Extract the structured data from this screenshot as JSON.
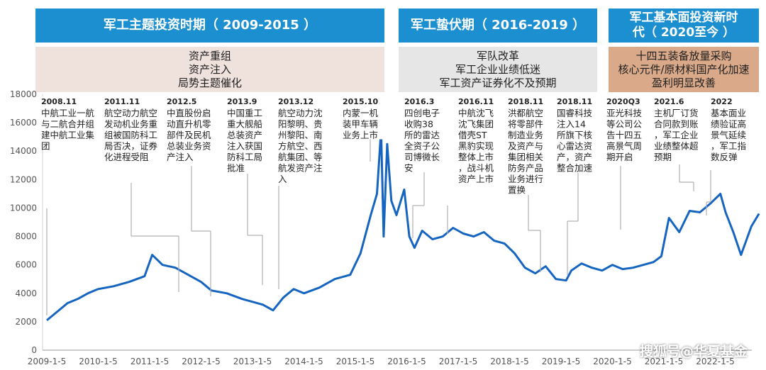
{
  "periods": [
    {
      "title": "军工主题投资时期（ 2009-2015 ）",
      "lines": [
        "资产重组",
        "资产注入",
        "局势主题催化"
      ]
    },
    {
      "title": "军工蛰伏期（ 2016-2019 ）",
      "lines": [
        "军队改革",
        "军工企业业绩低迷",
        "军工资产证券化不及预期"
      ]
    },
    {
      "title": "军工基本面投资新时代（ 2020至今 ）",
      "lines": [
        "十四五装备放量采购",
        "核心元件/原材料国产化加速",
        "盈利明显改善"
      ]
    }
  ],
  "colors": {
    "header": "#1b8fcf",
    "desc1": "#efe2dd",
    "desc2": "#e6e6e6",
    "desc3": "#d9a98a",
    "line": "#1565c0",
    "connector": "#b0b0b0"
  },
  "watermark": "搜狐号@华夏基金",
  "chart_data": {
    "type": "line",
    "title": "",
    "xlabel": "",
    "ylabel": "",
    "ylim": [
      0,
      18000
    ],
    "yticks": [
      0,
      2000,
      4000,
      6000,
      8000,
      10000,
      12000,
      14000,
      16000,
      18000
    ],
    "xticks": [
      "2009-1-5",
      "2010-1-5",
      "2011-1-5",
      "2012-1-5",
      "2013-1-5",
      "2014-1-5",
      "2015-1-5",
      "2016-1-5",
      "2017-1-5",
      "2018-1-5",
      "2019-1-5",
      "2020-1-5",
      "2021-1-5",
      "2022-1-5"
    ],
    "grid": false,
    "series": [
      {
        "name": "",
        "x": [
          2009.0,
          2009.2,
          2009.4,
          2009.6,
          2009.8,
          2010.0,
          2010.3,
          2010.6,
          2010.9,
          2011.05,
          2011.25,
          2011.5,
          2011.75,
          2012.0,
          2012.2,
          2012.5,
          2012.8,
          2013.0,
          2013.2,
          2013.4,
          2013.6,
          2013.8,
          2014.0,
          2014.3,
          2014.6,
          2014.9,
          2015.1,
          2015.3,
          2015.42,
          2015.5,
          2015.55,
          2015.62,
          2015.7,
          2015.8,
          2015.95,
          2016.05,
          2016.15,
          2016.3,
          2016.5,
          2016.7,
          2016.9,
          2017.1,
          2017.3,
          2017.5,
          2017.7,
          2017.9,
          2018.1,
          2018.3,
          2018.5,
          2018.7,
          2018.9,
          2019.1,
          2019.2,
          2019.4,
          2019.6,
          2019.8,
          2020.0,
          2020.2,
          2020.4,
          2020.6,
          2020.8,
          2020.95,
          2021.1,
          2021.3,
          2021.5,
          2021.7,
          2021.9,
          2022.1,
          2022.2,
          2022.35,
          2022.5,
          2022.7,
          2022.85
        ],
        "values": [
          2100,
          2700,
          3300,
          3600,
          4000,
          4300,
          4500,
          4800,
          5200,
          6700,
          6000,
          5800,
          5300,
          4800,
          4200,
          4000,
          3600,
          3400,
          3200,
          2800,
          3700,
          4300,
          4000,
          4400,
          5000,
          5300,
          6800,
          9500,
          11000,
          15500,
          8000,
          14500,
          10500,
          9500,
          11300,
          8000,
          7200,
          8400,
          7800,
          8000,
          8600,
          8200,
          8000,
          8300,
          7700,
          7500,
          6800,
          5800,
          5400,
          5900,
          5000,
          4900,
          5600,
          6100,
          5800,
          5600,
          6000,
          5700,
          5800,
          6000,
          6200,
          6600,
          9300,
          8300,
          9800,
          9700,
          10300,
          11000,
          9700,
          8300,
          6700,
          8700,
          9600
        ]
      }
    ],
    "annotations": [
      {
        "date": "2008.11",
        "text": "中航工业一航与二航合并组建中航工业集团"
      },
      {
        "date": "2011.11",
        "text": "航空动力航空发动机业务重组被国防科工局否决，证券化进程受阻"
      },
      {
        "date": "2012.5",
        "text": "中直股份启动直升机零部件及民机总装业务资产注入"
      },
      {
        "date": "2013.9",
        "text": "中国重工重大舰船总装资产注入获国防科工局批准"
      },
      {
        "date": "2013.12",
        "text": "航空动力沈阳黎明、贵州黎阳、南方航空、西航集团、等航发资产注入"
      },
      {
        "date": "2015.10",
        "text": "内蒙一机装甲车辆业务上市"
      },
      {
        "date": "2016.3",
        "text": "四创电子收购38所的雷达全资子公司博微长安"
      },
      {
        "date": "2016.11",
        "text": "中航沈飞沈飞集团借壳ST黑豹实现整体上市，战斗机资产上市"
      },
      {
        "date": "2018.11",
        "text": "洪都航空将零部件制造业务及资产与集团相关防务产品业务进行置换"
      },
      {
        "date": "2018.11",
        "text": "国睿科技注入14所旗下核心雷达资产，资产整合加速"
      },
      {
        "date": "2020Q3",
        "text": "亚光科技等公司公告十四五高景气周期开启"
      },
      {
        "date": "2021.6",
        "text": "主机厂订货合同款到账，军工企业业绩整体超预期"
      },
      {
        "date": "2022",
        "text": "基本面业绩验证高景气延续，军工指数反弹"
      }
    ]
  }
}
